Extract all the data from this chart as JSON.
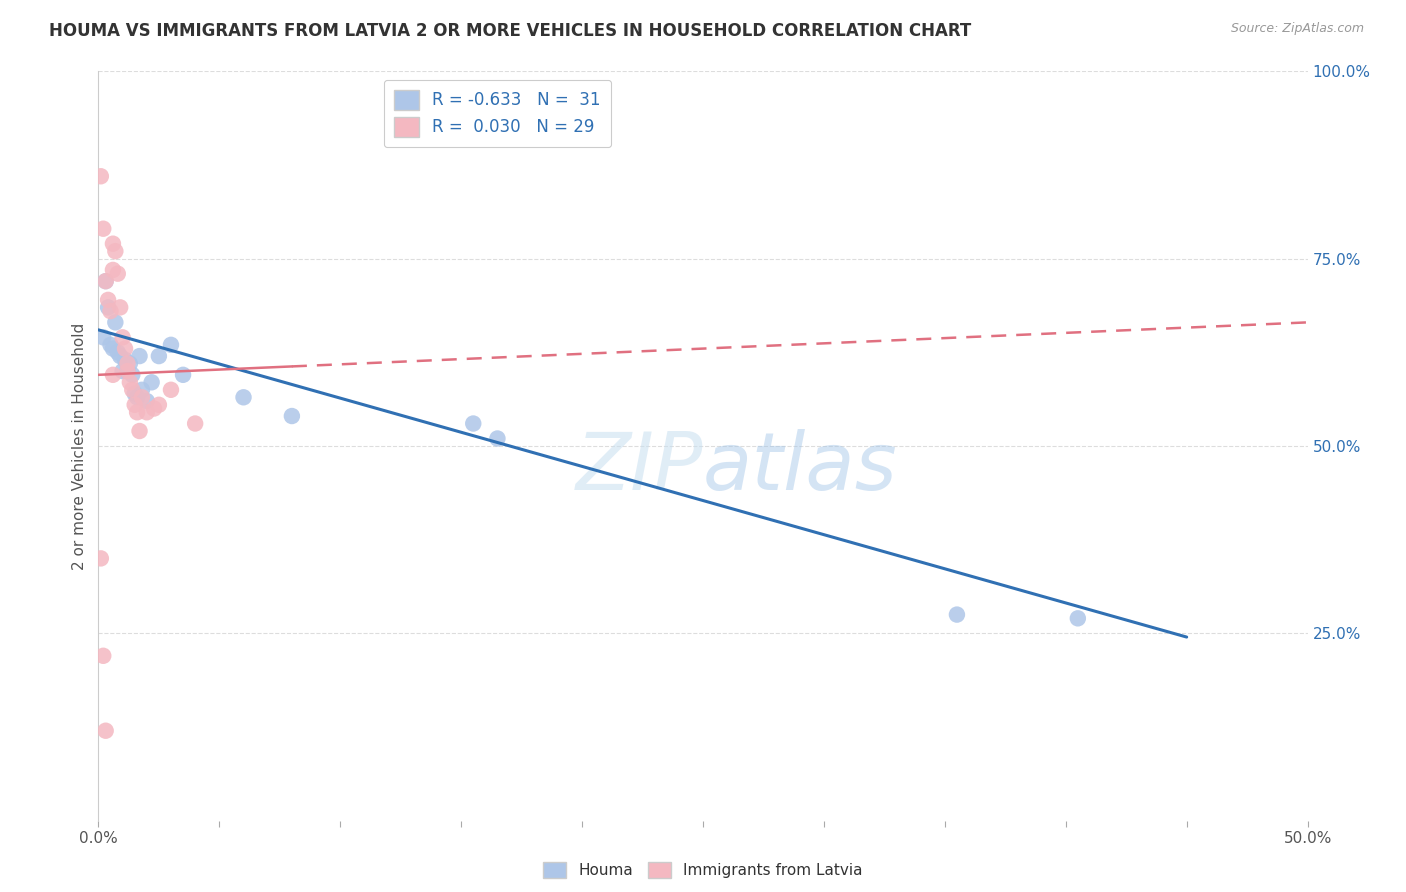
{
  "title": "HOUMA VS IMMIGRANTS FROM LATVIA 2 OR MORE VEHICLES IN HOUSEHOLD CORRELATION CHART",
  "source": "Source: ZipAtlas.com",
  "ylabel": "2 or more Vehicles in Household",
  "xlabel_houma": "Houma",
  "xlabel_latvia": "Immigrants from Latvia",
  "xlim": [
    0.0,
    0.5
  ],
  "ylim": [
    0.0,
    1.0
  ],
  "yticks_right_labels": [
    "25.0%",
    "50.0%",
    "75.0%",
    "100.0%"
  ],
  "yticks_right_values": [
    0.25,
    0.5,
    0.75,
    1.0
  ],
  "houma_color": "#aec6e8",
  "latvia_color": "#f4b8c1",
  "houma_line_color": "#3070b3",
  "latvia_line_color": "#e07080",
  "background_color": "#ffffff",
  "grid_color": "#dddddd",
  "houma_x": [
    0.002,
    0.003,
    0.004,
    0.005,
    0.006,
    0.007,
    0.008,
    0.009,
    0.01,
    0.011,
    0.012,
    0.013,
    0.014,
    0.015,
    0.016,
    0.017,
    0.018,
    0.02,
    0.022,
    0.025,
    0.03,
    0.035,
    0.06,
    0.08,
    0.155,
    0.165,
    0.355,
    0.405
  ],
  "houma_y": [
    0.645,
    0.72,
    0.685,
    0.635,
    0.63,
    0.665,
    0.625,
    0.62,
    0.6,
    0.615,
    0.6,
    0.61,
    0.595,
    0.57,
    0.565,
    0.62,
    0.575,
    0.56,
    0.585,
    0.62,
    0.635,
    0.595,
    0.565,
    0.54,
    0.53,
    0.51,
    0.275,
    0.27
  ],
  "latvia_x": [
    0.001,
    0.002,
    0.003,
    0.004,
    0.005,
    0.006,
    0.006,
    0.007,
    0.008,
    0.009,
    0.01,
    0.011,
    0.012,
    0.012,
    0.013,
    0.014,
    0.015,
    0.016,
    0.017,
    0.018,
    0.02,
    0.023,
    0.025,
    0.03,
    0.04,
    0.001,
    0.002,
    0.003,
    0.006
  ],
  "latvia_y": [
    0.86,
    0.79,
    0.72,
    0.695,
    0.68,
    0.77,
    0.735,
    0.76,
    0.73,
    0.685,
    0.645,
    0.63,
    0.6,
    0.61,
    0.585,
    0.575,
    0.555,
    0.545,
    0.52,
    0.565,
    0.545,
    0.55,
    0.555,
    0.575,
    0.53,
    0.35,
    0.22,
    0.12,
    0.595
  ]
}
